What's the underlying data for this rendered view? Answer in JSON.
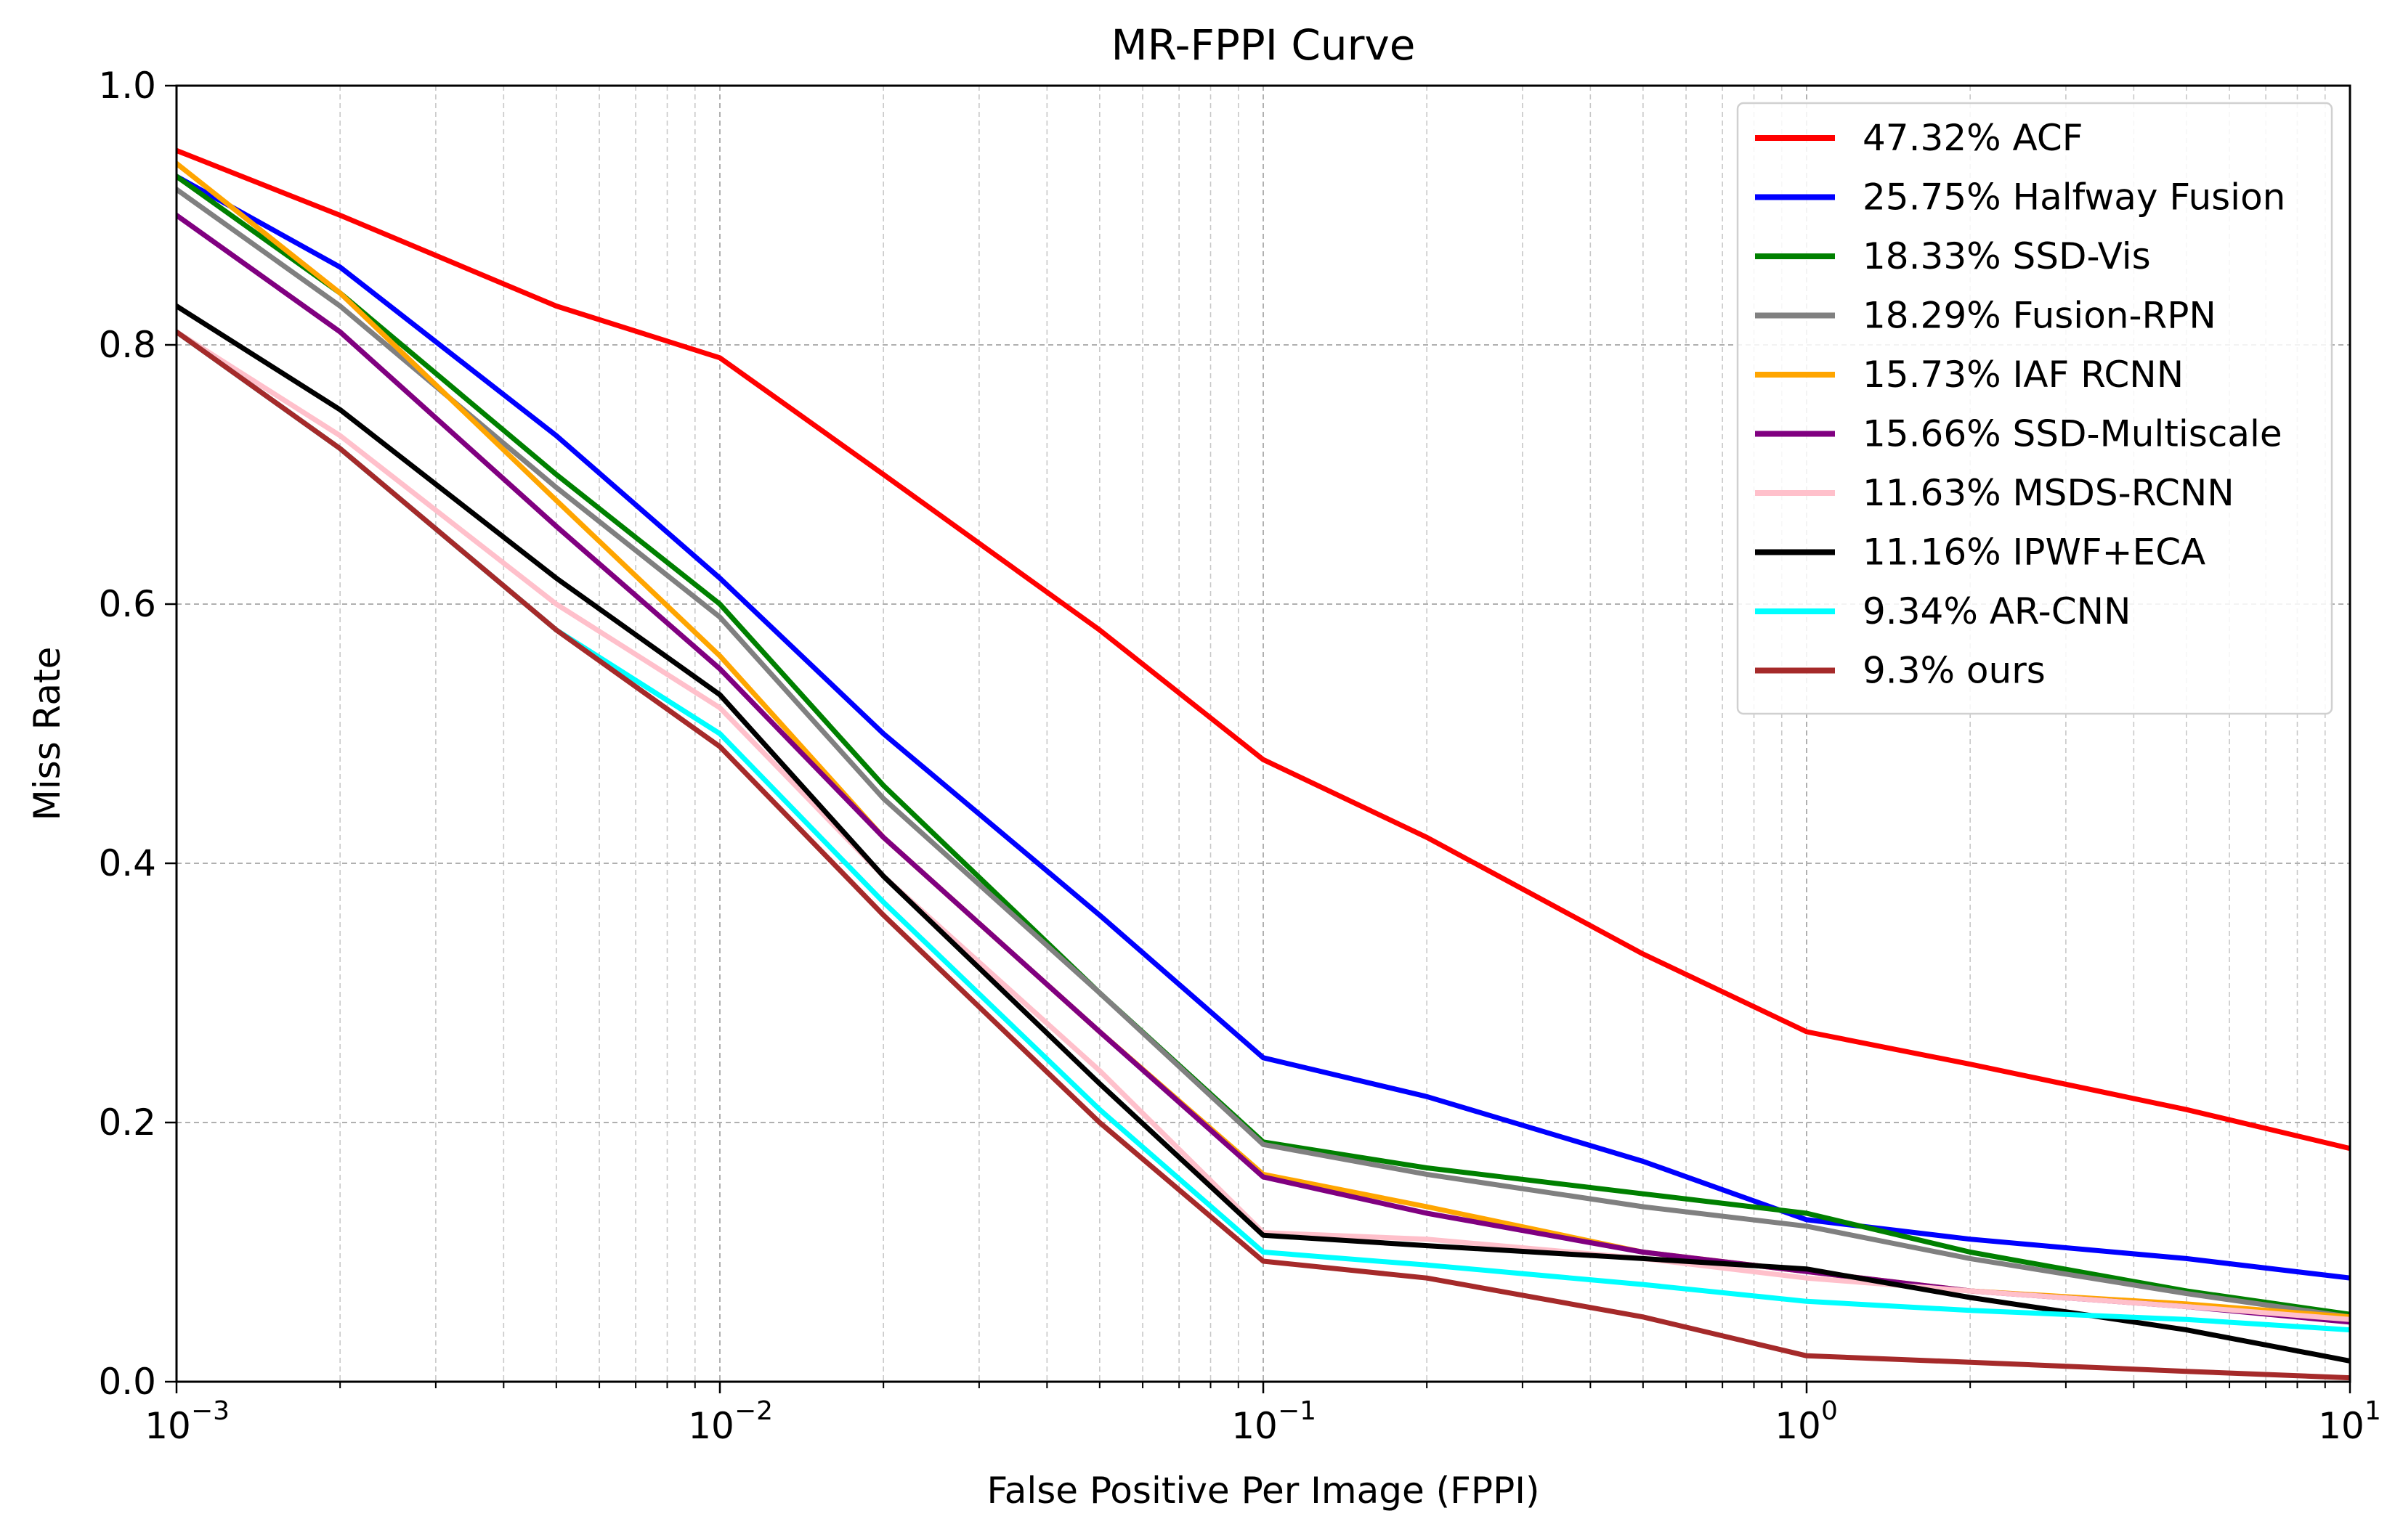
{
  "chart_data": {
    "type": "line",
    "title": "MR-FPPI Curve",
    "xlabel": "False Positive Per Image (FPPI)",
    "ylabel": "Miss Rate",
    "xscale": "log",
    "xlim": [
      0.001,
      10
    ],
    "ylim": [
      0.0,
      1.0
    ],
    "grid": true,
    "legend_position": "top-right",
    "x_ticks": [
      {
        "value": 0.001,
        "base": "10",
        "exp": "−3"
      },
      {
        "value": 0.01,
        "base": "10",
        "exp": "−2"
      },
      {
        "value": 0.1,
        "base": "10",
        "exp": "−1"
      },
      {
        "value": 1,
        "base": "10",
        "exp": "0"
      },
      {
        "value": 10,
        "base": "10",
        "exp": "1"
      }
    ],
    "y_ticks": [
      {
        "value": 0.0,
        "label": "0.0"
      },
      {
        "value": 0.2,
        "label": "0.2"
      },
      {
        "value": 0.4,
        "label": "0.4"
      },
      {
        "value": 0.6,
        "label": "0.6"
      },
      {
        "value": 0.8,
        "label": "0.8"
      },
      {
        "value": 1.0,
        "label": "1.0"
      }
    ],
    "series": [
      {
        "name": "47.32% ACF",
        "color": "#ff0000",
        "x": [
          0.001,
          0.002,
          0.005,
          0.01,
          0.02,
          0.05,
          0.1,
          0.2,
          0.5,
          1,
          2,
          5,
          10
        ],
        "y": [
          0.95,
          0.9,
          0.83,
          0.79,
          0.7,
          0.58,
          0.48,
          0.42,
          0.33,
          0.27,
          0.245,
          0.21,
          0.18
        ]
      },
      {
        "name": "25.75% Halfway Fusion",
        "color": "#0000ff",
        "x": [
          0.001,
          0.002,
          0.005,
          0.01,
          0.02,
          0.05,
          0.1,
          0.2,
          0.5,
          1,
          2,
          5,
          10
        ],
        "y": [
          0.93,
          0.86,
          0.73,
          0.62,
          0.5,
          0.36,
          0.25,
          0.22,
          0.17,
          0.125,
          0.11,
          0.095,
          0.08
        ]
      },
      {
        "name": "18.33% SSD-Vis",
        "color": "#008000",
        "x": [
          0.001,
          0.002,
          0.005,
          0.01,
          0.02,
          0.05,
          0.1,
          0.2,
          0.5,
          1,
          2,
          5,
          10
        ],
        "y": [
          0.93,
          0.84,
          0.7,
          0.6,
          0.46,
          0.3,
          0.185,
          0.165,
          0.145,
          0.13,
          0.1,
          0.07,
          0.052
        ]
      },
      {
        "name": "18.29% Fusion-RPN",
        "color": "#808080",
        "x": [
          0.001,
          0.002,
          0.005,
          0.01,
          0.02,
          0.05,
          0.1,
          0.2,
          0.5,
          1,
          2,
          5,
          10
        ],
        "y": [
          0.92,
          0.83,
          0.69,
          0.59,
          0.45,
          0.3,
          0.183,
          0.16,
          0.135,
          0.12,
          0.095,
          0.068,
          0.05
        ]
      },
      {
        "name": "15.73% IAF RCNN",
        "color": "#ffa500",
        "x": [
          0.001,
          0.002,
          0.005,
          0.01,
          0.02,
          0.05,
          0.1,
          0.2,
          0.5,
          1,
          2,
          5,
          10
        ],
        "y": [
          0.94,
          0.84,
          0.68,
          0.56,
          0.42,
          0.27,
          0.16,
          0.135,
          0.1,
          0.085,
          0.07,
          0.06,
          0.05
        ]
      },
      {
        "name": "15.66% SSD-Multiscale",
        "color": "#800080",
        "x": [
          0.001,
          0.002,
          0.005,
          0.01,
          0.02,
          0.05,
          0.1,
          0.2,
          0.5,
          1,
          2,
          5,
          10
        ],
        "y": [
          0.9,
          0.81,
          0.66,
          0.55,
          0.42,
          0.27,
          0.158,
          0.13,
          0.1,
          0.085,
          0.07,
          0.058,
          0.046
        ]
      },
      {
        "name": "11.63% MSDS-RCNN",
        "color": "#ffc0cb",
        "x": [
          0.001,
          0.002,
          0.005,
          0.01,
          0.02,
          0.05,
          0.1,
          0.2,
          0.5,
          1,
          2,
          5,
          10
        ],
        "y": [
          0.81,
          0.73,
          0.6,
          0.52,
          0.39,
          0.24,
          0.115,
          0.11,
          0.095,
          0.08,
          0.07,
          0.058,
          0.048
        ]
      },
      {
        "name": "11.16% IPWF+ECA",
        "color": "#000000",
        "x": [
          0.001,
          0.002,
          0.005,
          0.01,
          0.02,
          0.05,
          0.1,
          0.2,
          0.5,
          1,
          2,
          5,
          10
        ],
        "y": [
          0.83,
          0.75,
          0.62,
          0.53,
          0.39,
          0.23,
          0.113,
          0.105,
          0.095,
          0.087,
          0.065,
          0.04,
          0.016
        ]
      },
      {
        "name": "9.34% AR-CNN",
        "color": "#00ffff",
        "x": [
          0.001,
          0.002,
          0.005,
          0.01,
          0.02,
          0.05,
          0.1,
          0.2,
          0.5,
          1,
          2,
          5,
          10
        ],
        "y": [
          0.81,
          0.72,
          0.58,
          0.5,
          0.37,
          0.21,
          0.1,
          0.09,
          0.075,
          0.062,
          0.055,
          0.048,
          0.04
        ]
      },
      {
        "name": "9.3% ours",
        "color": "#a52a2a",
        "x": [
          0.001,
          0.002,
          0.005,
          0.01,
          0.02,
          0.05,
          0.1,
          0.2,
          0.5,
          1,
          2,
          5,
          10
        ],
        "y": [
          0.81,
          0.72,
          0.58,
          0.49,
          0.36,
          0.2,
          0.093,
          0.08,
          0.05,
          0.02,
          0.015,
          0.008,
          0.003
        ]
      }
    ]
  }
}
